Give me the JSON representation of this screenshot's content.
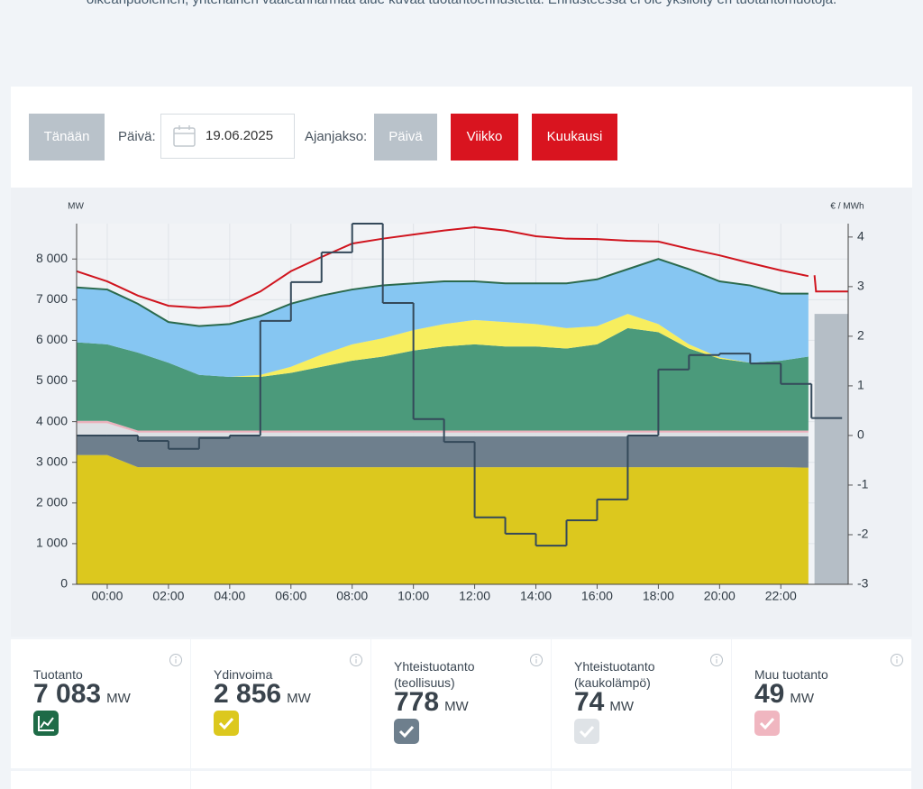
{
  "intro_text": "oikeanpuoleinen, yhtenäinen vaaleanharmaa alue kuvaa tuotantoennustetta. Ennusteessa ei ole yksilöity eri tuotantomuotoja.",
  "controls": {
    "today": "Tänään",
    "date_label": "Päivä:",
    "date": "19.06.2025",
    "period_label": "Ajanjakso:",
    "periods": [
      "Päivä",
      "Viikko",
      "Kuukausi"
    ]
  },
  "chart_data": {
    "type": "area",
    "stacked": true,
    "y_label": "MW",
    "y2_label": "€ / MWh",
    "x": [
      -1,
      0,
      1,
      2,
      3,
      4,
      5,
      6,
      7,
      8,
      9,
      10,
      11,
      12,
      13,
      14,
      15,
      16,
      17,
      18,
      19,
      20,
      21,
      22,
      22.9
    ],
    "xlim": [
      -1,
      24.2
    ],
    "xticks": [
      {
        "value": 0,
        "label": "00:00"
      },
      {
        "value": 2,
        "label": "02:00"
      },
      {
        "value": 4,
        "label": "04:00"
      },
      {
        "value": 6,
        "label": "06:00"
      },
      {
        "value": 8,
        "label": "08:00"
      },
      {
        "value": 10,
        "label": "10:00"
      },
      {
        "value": 12,
        "label": "12:00"
      },
      {
        "value": 14,
        "label": "14:00"
      },
      {
        "value": 16,
        "label": "16:00"
      },
      {
        "value": 18,
        "label": "18:00"
      },
      {
        "value": 20,
        "label": "20:00"
      },
      {
        "value": 22,
        "label": "22:00"
      }
    ],
    "ylim": [
      0,
      8870
    ],
    "yticks": [
      0,
      {
        "value": 1000,
        "label": "1 000"
      },
      {
        "value": 2000,
        "label": "2 000"
      },
      {
        "value": 3000,
        "label": "3 000"
      },
      {
        "value": 4000,
        "label": "4 000"
      },
      {
        "value": 5000,
        "label": "5 000"
      },
      {
        "value": 6000,
        "label": "6 000"
      },
      {
        "value": 7000,
        "label": "7 000"
      },
      {
        "value": 8000,
        "label": "8 000"
      }
    ],
    "y2lim": [
      -3,
      4.27
    ],
    "y2ticks": [
      -3,
      -2,
      -1,
      0,
      1,
      2,
      3,
      4
    ],
    "grid": true,
    "series": [
      {
        "color": "#dcc81e",
        "values": [
          3180,
          3180,
          2880,
          2880,
          2880,
          2880,
          2880,
          2880,
          2880,
          2880,
          2880,
          2880,
          2880,
          2880,
          2880,
          2880,
          2880,
          2880,
          2880,
          2880,
          2880,
          2880,
          2880,
          2880,
          2870
        ]
      },
      {
        "color": "#6e7f8d",
        "values": [
          480,
          480,
          760,
          760,
          760,
          760,
          760,
          760,
          760,
          760,
          760,
          760,
          760,
          760,
          760,
          760,
          760,
          760,
          760,
          760,
          760,
          760,
          760,
          760,
          770
        ]
      },
      {
        "color": "#dde1e5",
        "values": [
          300,
          300,
          90,
          90,
          90,
          90,
          90,
          90,
          90,
          90,
          90,
          90,
          90,
          90,
          90,
          90,
          90,
          90,
          90,
          90,
          90,
          90,
          90,
          90,
          90
        ]
      },
      {
        "color": "#eab2bd",
        "values": [
          60,
          60,
          50,
          50,
          50,
          50,
          50,
          50,
          50,
          50,
          50,
          50,
          50,
          50,
          50,
          50,
          50,
          50,
          50,
          50,
          50,
          50,
          50,
          50,
          50
        ]
      },
      {
        "color": "#4b9a7b",
        "values": [
          1930,
          1880,
          1920,
          1670,
          1370,
          1320,
          1320,
          1420,
          1570,
          1720,
          1820,
          1970,
          2070,
          2120,
          2070,
          2070,
          2020,
          2120,
          2520,
          2420,
          2020,
          1770,
          1670,
          1720,
          1820
        ]
      },
      {
        "color": "#f7ee5e",
        "values": [
          0,
          0,
          0,
          0,
          0,
          0,
          50,
          150,
          300,
          400,
          450,
          500,
          550,
          600,
          600,
          550,
          500,
          450,
          350,
          200,
          100,
          30,
          0,
          0,
          0
        ]
      },
      {
        "color": "#86c6f2",
        "values": [
          1350,
          1350,
          1200,
          1000,
          1200,
          1300,
          1450,
          1550,
          1450,
          1350,
          1300,
          1150,
          1050,
          950,
          950,
          1000,
          1100,
          1150,
          1100,
          1600,
          1850,
          1870,
          1900,
          1650,
          1550
        ]
      },
      {
        "type": "line",
        "color": "#2b6a4d",
        "values": [
          7300,
          7250,
          6900,
          6450,
          6350,
          6400,
          6600,
          6900,
          7100,
          7250,
          7350,
          7400,
          7450,
          7450,
          7400,
          7400,
          7400,
          7500,
          7750,
          8000,
          7750,
          7450,
          7350,
          7150,
          7150
        ]
      },
      {
        "type": "line",
        "color": "#d0141e",
        "values": [
          7700,
          7450,
          7100,
          6850,
          6800,
          6850,
          7200,
          7700,
          8050,
          8380,
          8500,
          8600,
          8700,
          8780,
          8700,
          8560,
          8500,
          8490,
          8450,
          8430,
          8250,
          8090,
          7900,
          7720,
          7580
        ]
      },
      {
        "stacked": false,
        "color": "#b5bec6",
        "x": [
          23.1,
          24.2
        ],
        "values": [
          6650,
          6650
        ]
      },
      {
        "type": "line",
        "color": "#d0141e",
        "x": [
          23.1,
          23.15,
          24.2
        ],
        "values": [
          7600,
          7200,
          7200
        ]
      },
      {
        "type": "step",
        "axis": "y2",
        "color": "#34495a",
        "x": [
          -1,
          0,
          1,
          2,
          3,
          4,
          5,
          6,
          7,
          8,
          9,
          10,
          11,
          12,
          13,
          14,
          15,
          16,
          17,
          18,
          19,
          20,
          21,
          22,
          23
        ],
        "values": [
          0,
          0,
          -0.11,
          -0.27,
          -0.05,
          0,
          2.31,
          3.09,
          3.69,
          4.27,
          2.67,
          0.33,
          -0.13,
          -1.65,
          -1.98,
          -2.22,
          -1.71,
          -1.29,
          0,
          1.33,
          1.62,
          1.65,
          1.45,
          1.04,
          0.35
        ]
      }
    ]
  },
  "cards": [
    {
      "title": "Tuotanto",
      "value": "7 083",
      "unit": "MW"
    },
    {
      "title": "Ydinvoima",
      "value": "2 856",
      "unit": "MW"
    },
    {
      "title": "Yhteistuotanto (teollisuus)",
      "value": "778",
      "unit": "MW"
    },
    {
      "title": "Yhteistuotanto (kaukolämpö)",
      "value": "74",
      "unit": "MW"
    },
    {
      "title": "Muu tuotanto",
      "value": "49",
      "unit": "MW"
    }
  ]
}
